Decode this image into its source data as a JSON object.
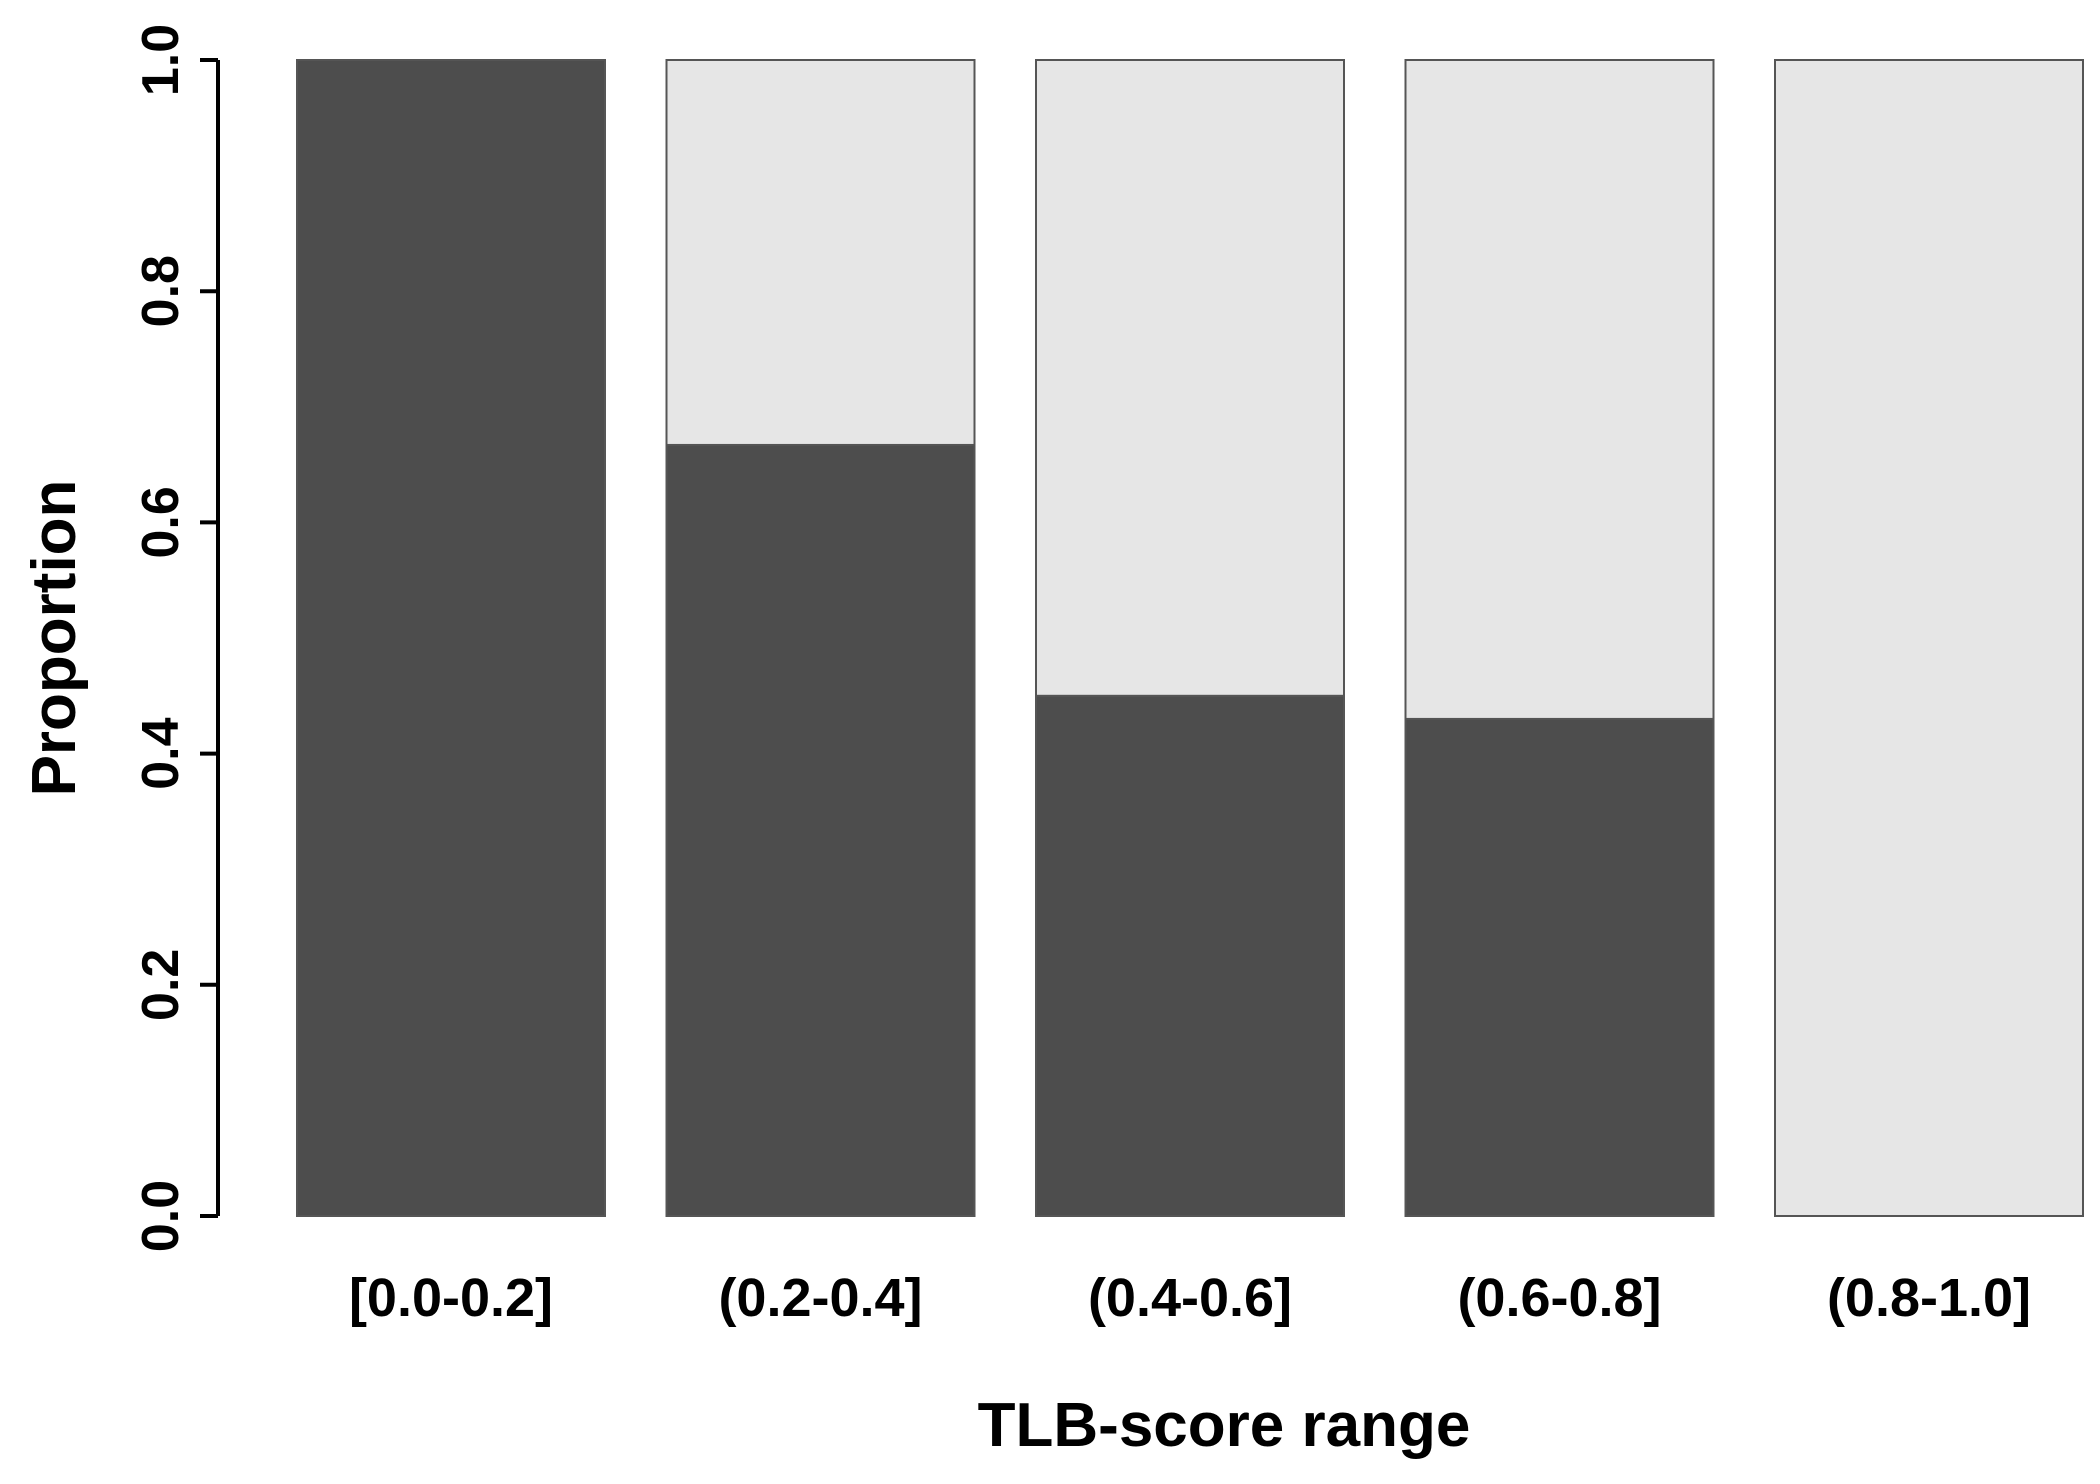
{
  "chart_data": {
    "type": "bar",
    "stacked": true,
    "title": "",
    "xlabel": "TLB-score range",
    "ylabel": "Proportion",
    "categories": [
      "[0.0-0.2]",
      "(0.2-0.4]",
      "(0.4-0.6]",
      "(0.6-0.8]",
      "(0.8-1.0]"
    ],
    "ylim": [
      0,
      1
    ],
    "yticks": [
      "0.0",
      "0.2",
      "0.4",
      "0.6",
      "0.8",
      "1.0"
    ],
    "grid": false,
    "legend": "none",
    "series": [
      {
        "values": [
          1.0,
          0.667,
          0.45,
          0.43,
          0.0
        ],
        "color": "#4d4d4d"
      },
      {
        "values": [
          0.0,
          0.333,
          0.55,
          0.57,
          1.0
        ],
        "color": "#e6e6e6"
      }
    ]
  }
}
